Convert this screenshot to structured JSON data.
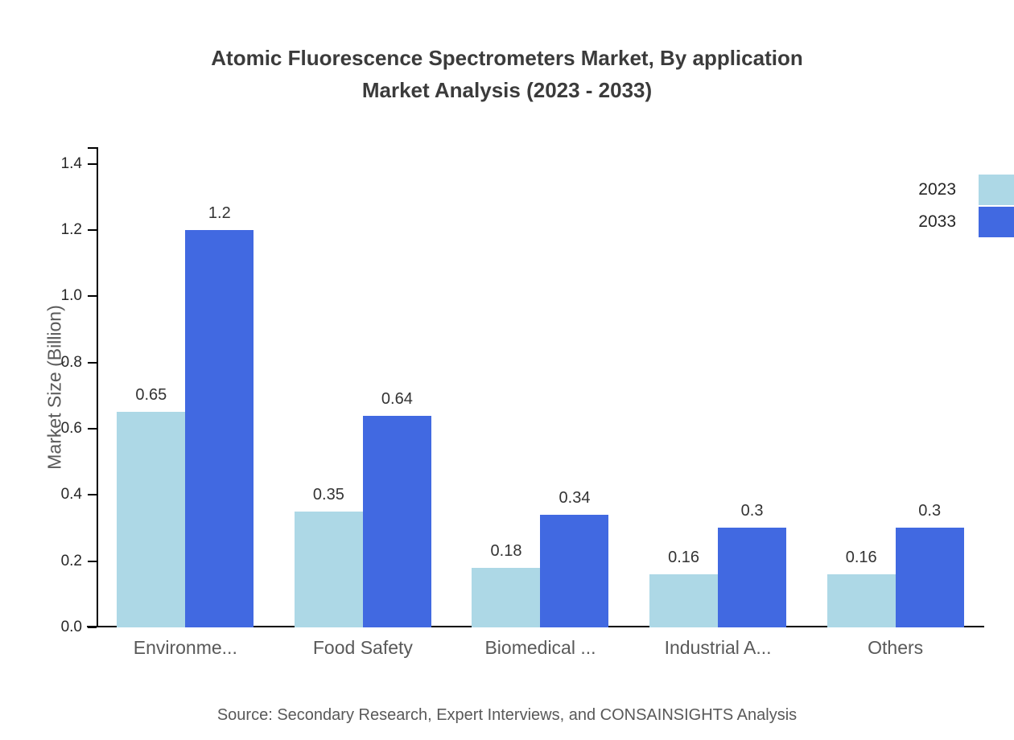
{
  "chart_data": {
    "type": "bar",
    "title": "Atomic Fluorescence Spectrometers Market, By application Market Analysis (2023 - 2033)",
    "title_line1": "Atomic Fluorescence Spectrometers Market, By application",
    "title_line2": "Market Analysis (2023 - 2033)",
    "ylabel": "Market Size (Billion)",
    "xlabel": "",
    "categories": [
      "Environme...",
      "Food Safety",
      "Biomedical ...",
      "Industrial A...",
      "Others"
    ],
    "series": [
      {
        "name": "2023",
        "color": "#ADD8E6",
        "values": [
          0.65,
          0.35,
          0.18,
          0.16,
          0.16
        ]
      },
      {
        "name": "2033",
        "color": "#4169E1",
        "values": [
          1.2,
          0.64,
          0.34,
          0.3,
          0.3
        ]
      }
    ],
    "yticks": [
      0.0,
      0.2,
      0.4,
      0.6,
      0.8,
      1.0,
      1.2,
      1.4
    ],
    "ylim": [
      0,
      1.45
    ],
    "grid": false,
    "legend_position": "top-right",
    "source": "Source: Secondary Research, Expert Interviews, and CONSAINSIGHTS Analysis"
  }
}
